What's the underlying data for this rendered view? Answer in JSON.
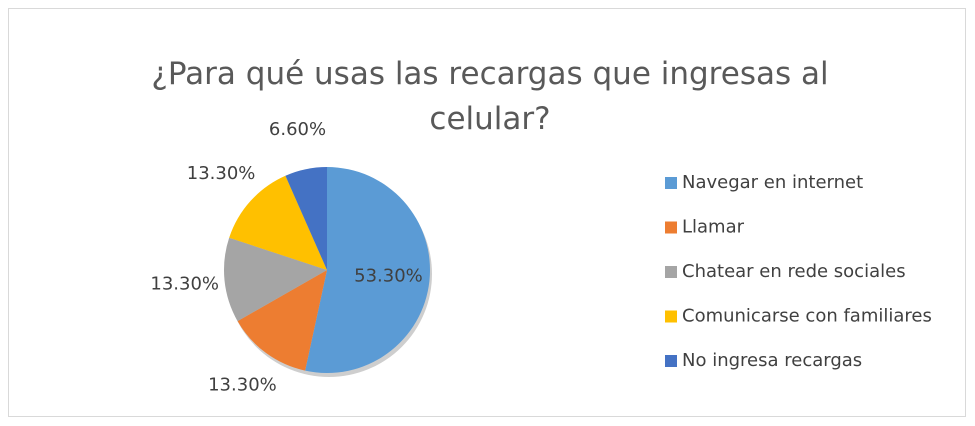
{
  "chart_data": {
    "type": "pie",
    "title": "¿Para qué usas las recargas que ingresas al celular?",
    "categories": [
      "Navegar en internet",
      "Llamar",
      "Chatear en rede sociales",
      "Comunicarse con familiares",
      "No ingresa recargas"
    ],
    "values": [
      53.3,
      13.3,
      13.3,
      13.3,
      6.6
    ],
    "value_labels": [
      "53.30%",
      "13.30%",
      "13.30%",
      "13.30%",
      "6.60%"
    ],
    "colors": [
      "#5b9bd5",
      "#ed7d31",
      "#a5a5a5",
      "#ffc000",
      "#4472c4"
    ],
    "legend": "right"
  }
}
